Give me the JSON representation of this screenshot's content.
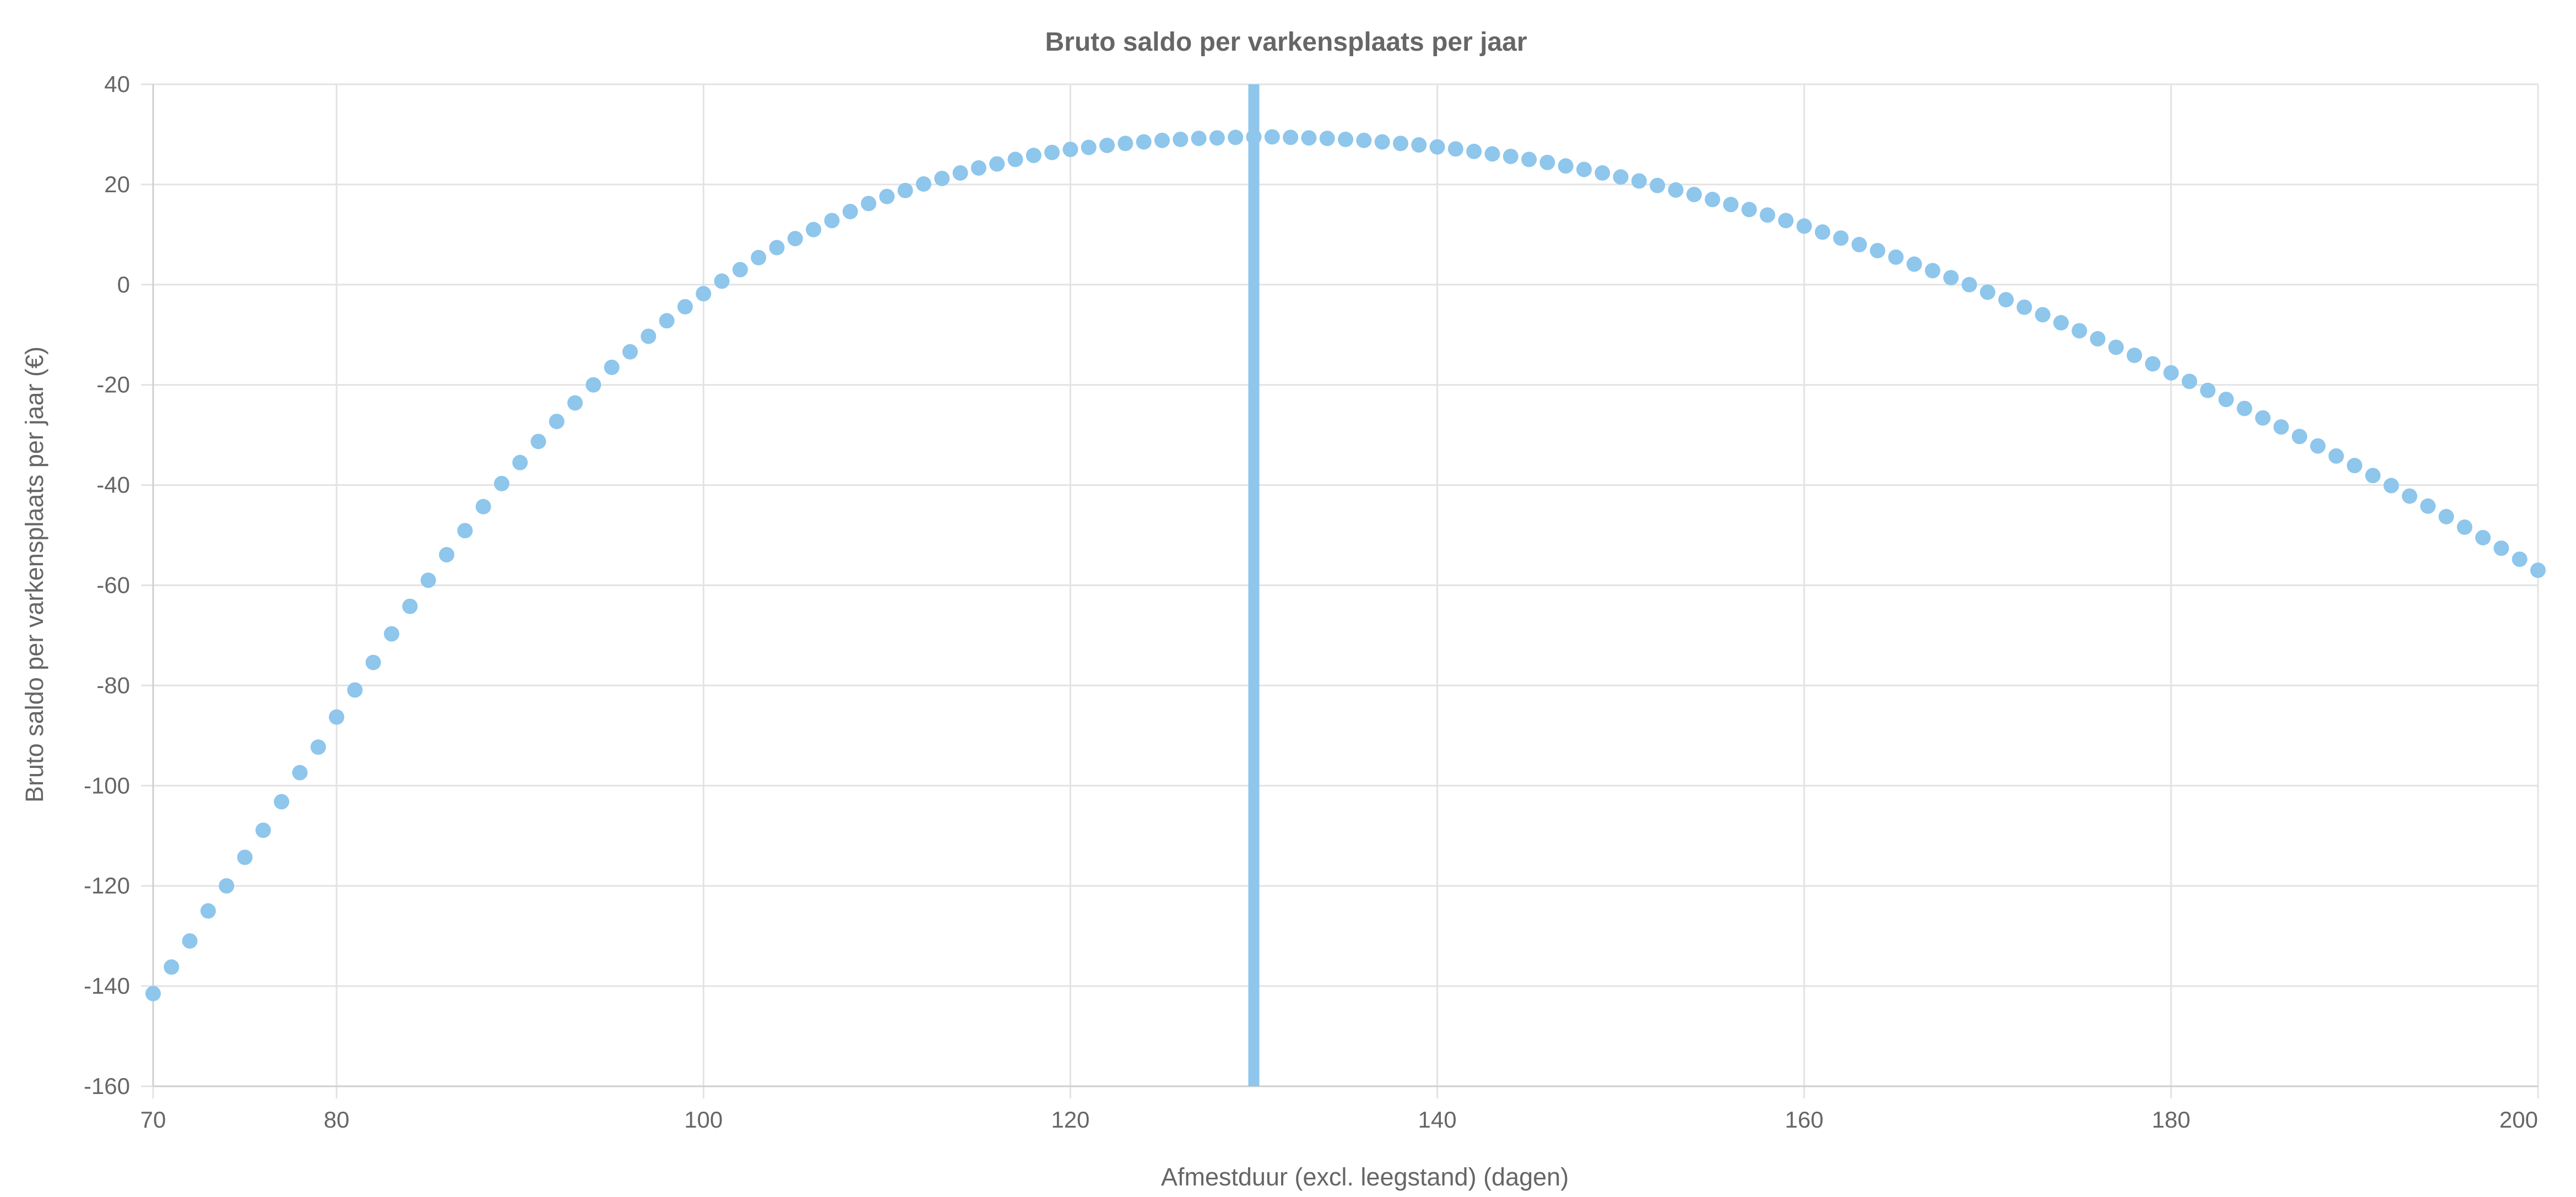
{
  "chart_data": {
    "type": "scatter",
    "title": "Bruto saldo per varkensplaats per jaar",
    "xlabel": "Afmestduur (excl. leegstand) (dagen)",
    "ylabel": "Bruto saldo per varkensplaats per jaar (€)",
    "xlim": [
      70,
      200
    ],
    "ylim": [
      -160,
      40
    ],
    "x_ticks": [
      "70",
      "80",
      "100",
      "120",
      "140",
      "160",
      "180",
      "200"
    ],
    "y_ticks": [
      "40",
      "20",
      "0",
      "-20",
      "-40",
      "-60",
      "-80",
      "-100",
      "-120",
      "-140",
      "-160"
    ],
    "grid": true,
    "legend": "none",
    "point_color": "#8ec6ec",
    "marker_line": {
      "x": 130,
      "color": "#8ec6ec"
    },
    "series": [
      {
        "x": [
          70,
          71,
          72,
          73,
          74,
          75,
          76,
          77,
          78,
          79,
          80,
          81,
          82,
          83,
          84,
          85,
          86,
          87,
          88,
          89,
          90,
          91,
          92,
          93,
          94,
          95,
          96,
          97,
          98,
          99,
          100,
          101,
          102,
          103,
          104,
          105,
          106,
          107,
          108,
          109,
          110,
          111,
          112,
          113,
          114,
          115,
          116,
          117,
          118,
          119,
          120,
          121,
          122,
          123,
          124,
          125,
          126,
          127,
          128,
          129,
          130,
          131,
          132,
          133,
          134,
          135,
          136,
          137,
          138,
          139,
          140,
          141,
          142,
          143,
          144,
          145,
          146,
          147,
          148,
          149,
          150,
          151,
          152,
          153,
          154,
          155,
          156,
          157,
          158,
          159,
          160,
          161,
          162,
          163,
          164,
          165,
          166,
          167,
          168,
          169,
          170,
          171,
          172,
          173,
          174,
          175,
          176,
          177,
          178,
          179,
          180,
          181,
          182,
          183,
          184,
          185,
          186,
          187,
          188,
          189,
          190,
          191,
          192,
          193,
          194,
          195,
          196,
          197,
          198,
          199,
          200
        ],
        "values": [
          -141.5,
          -136.2,
          -131,
          -125,
          -120,
          -114.3,
          -108.9,
          -103.2,
          -97.4,
          -92.3,
          -86.3,
          -80.9,
          -75.4,
          -69.7,
          -64.2,
          -59,
          -53.9,
          -49.1,
          -44.3,
          -39.7,
          -35.5,
          -31.3,
          -27.3,
          -23.6,
          -20,
          -16.5,
          -13.4,
          -10.3,
          -7.2,
          -4.4,
          -1.8,
          0.7,
          3,
          5.4,
          7.4,
          9.2,
          11,
          12.8,
          14.6,
          16.2,
          17.6,
          18.8,
          20.1,
          21.2,
          22.3,
          23.3,
          24.1,
          25,
          25.8,
          26.4,
          27,
          27.4,
          27.8,
          28.2,
          28.5,
          28.8,
          29,
          29.2,
          29.3,
          29.4,
          29.5,
          29.5,
          29.4,
          29.3,
          29.2,
          29,
          28.8,
          28.5,
          28.2,
          27.9,
          27.5,
          27.1,
          26.6,
          26.1,
          25.6,
          25,
          24.4,
          23.7,
          23,
          22.3,
          21.5,
          20.7,
          19.8,
          18.9,
          18,
          17,
          16,
          15,
          13.9,
          12.8,
          11.7,
          10.5,
          9.3,
          8,
          6.8,
          5.5,
          4.1,
          2.8,
          1.4,
          0,
          -1.5,
          -3,
          -4.5,
          -6,
          -7.6,
          -9.2,
          -10.8,
          -12.5,
          -14.1,
          -15.8,
          -17.6,
          -19.3,
          -21.1,
          -22.9,
          -24.7,
          -26.6,
          -28.4,
          -30.3,
          -32.2,
          -34.2,
          -36.1,
          -38.1,
          -40.1,
          -42.2,
          -44.2,
          -46.3,
          -48.4,
          -50.5,
          -52.6,
          -54.8,
          -57
        ]
      }
    ]
  }
}
